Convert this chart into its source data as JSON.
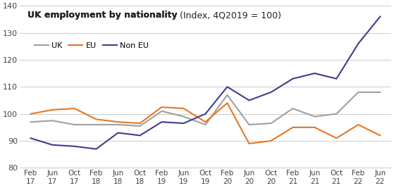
{
  "title_bold": "UK employment by nationality",
  "title_normal": " (Index, 4Q2019 = 100)",
  "ylim": [
    80,
    140
  ],
  "yticks": [
    80,
    90,
    100,
    110,
    120,
    130,
    140
  ],
  "x_labels": [
    "Feb\n17",
    "Jun\n17",
    "Oct\n17",
    "Feb\n18",
    "Jun\n18",
    "Oct\n18",
    "Feb\n19",
    "Jun\n19",
    "Oct\n19",
    "Feb\n20",
    "Jun\n20",
    "Oct\n20",
    "Feb\n21",
    "Jun\n21",
    "Oct\n21",
    "Feb\n22",
    "Jun\n22"
  ],
  "uk": [
    97,
    97.5,
    96,
    96,
    96,
    95.5,
    101,
    99,
    96,
    107,
    96,
    96.5,
    102,
    99,
    100,
    108,
    108
  ],
  "eu": [
    100,
    101.5,
    102,
    98,
    97,
    96.5,
    102.5,
    102,
    97,
    104,
    89,
    90,
    95,
    95,
    91,
    96,
    92
  ],
  "non_eu": [
    91,
    88.5,
    88,
    87,
    93,
    92,
    97,
    96.5,
    100,
    110,
    105,
    108,
    113,
    115,
    113,
    126,
    136
  ],
  "uk_color": "#a0a0a0",
  "eu_color": "#e87722",
  "non_eu_color": "#3d3d8f",
  "background_color": "#ffffff",
  "grid_color": "#cccccc",
  "legend_labels": [
    "UK",
    "EU",
    "Non EU"
  ]
}
